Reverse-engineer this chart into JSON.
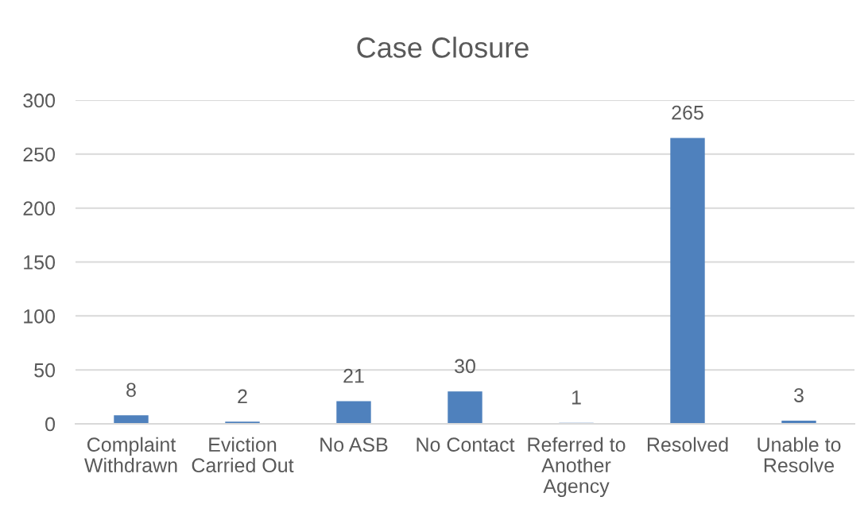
{
  "chart_data": {
    "type": "bar",
    "title": "Case Closure",
    "categories": [
      "Complaint Withdrawn",
      "Eviction Carried Out",
      "No ASB",
      "No Contact",
      "Referred to Another Agency",
      "Resolved",
      "Unable to Resolve"
    ],
    "values": [
      8,
      2,
      21,
      30,
      1,
      265,
      3
    ],
    "color": "#4f81bd",
    "ylim": [
      0,
      300
    ],
    "yticks": [
      0,
      50,
      100,
      150,
      200,
      250,
      300
    ],
    "grid": "y",
    "data_labels": true
  }
}
